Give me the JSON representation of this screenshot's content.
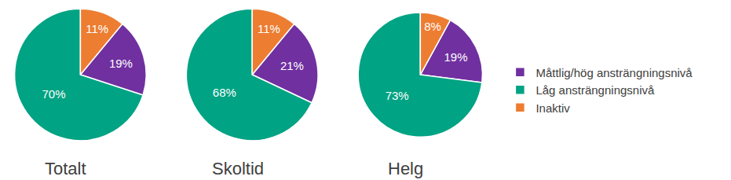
{
  "chart_data": [
    {
      "type": "pie",
      "title": "Totalt",
      "categories": [
        "Måttlig/hög ansträngningsnivå",
        "Låg ansträngningsnivå",
        "Inaktiv"
      ],
      "values": [
        19,
        70,
        11
      ],
      "value_labels": [
        "19%",
        "70%",
        "11%"
      ],
      "colors": [
        "#7030A0",
        "#00A383",
        "#ED7D31"
      ],
      "data_labels": true,
      "legend": "right"
    },
    {
      "type": "pie",
      "title": "Skoltid",
      "categories": [
        "Måttlig/hög ansträngningsnivå",
        "Låg ansträngningsnivå",
        "Inaktiv"
      ],
      "values": [
        21,
        68,
        11
      ],
      "value_labels": [
        "21%",
        "68%",
        "11%"
      ],
      "colors": [
        "#7030A0",
        "#00A383",
        "#ED7D31"
      ],
      "data_labels": true,
      "legend": "right"
    },
    {
      "type": "pie",
      "title": "Helg",
      "categories": [
        "Måttlig/hög ansträngningsnivå",
        "Låg ansträngningsnivå",
        "Inaktiv"
      ],
      "values": [
        19,
        73,
        8
      ],
      "value_labels": [
        "19%",
        "73%",
        "8%"
      ],
      "colors": [
        "#7030A0",
        "#00A383",
        "#ED7D31"
      ],
      "data_labels": true,
      "legend": "right"
    }
  ]
}
